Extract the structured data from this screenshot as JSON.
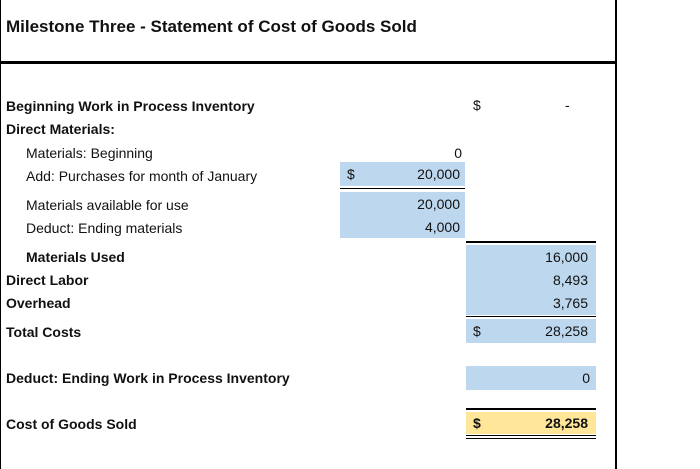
{
  "title": "Milestone Three - Statement of Cost of Goods Sold",
  "rows": {
    "beginning_wip": {
      "label": "Beginning Work in Process Inventory",
      "currency": "$",
      "value": "-"
    },
    "direct_materials": {
      "label": "Direct Materials:"
    },
    "materials_beginning": {
      "label": "Materials: Beginning",
      "value": "0"
    },
    "purchases": {
      "label": "Add: Purchases for month of January",
      "currency": "$",
      "value": "20,000"
    },
    "materials_available": {
      "label": "Materials available for use",
      "value": "20,000"
    },
    "ending_materials": {
      "label": "Deduct: Ending materials",
      "value": "4,000"
    },
    "materials_used": {
      "label": "Materials Used",
      "value": "16,000"
    },
    "direct_labor": {
      "label": "Direct Labor",
      "value": "8,493"
    },
    "overhead": {
      "label": "Overhead",
      "value": "3,765"
    },
    "total_costs": {
      "label": "Total Costs",
      "currency": "$",
      "value": "28,258"
    },
    "ending_wip": {
      "label": "Deduct: Ending Work in Process Inventory",
      "value": "0"
    },
    "cogs": {
      "label": "Cost of Goods Sold",
      "currency": "$",
      "value": "28,258"
    }
  },
  "colors": {
    "input_fill": "#bdd7ee",
    "total_fill": "#ffe699"
  }
}
